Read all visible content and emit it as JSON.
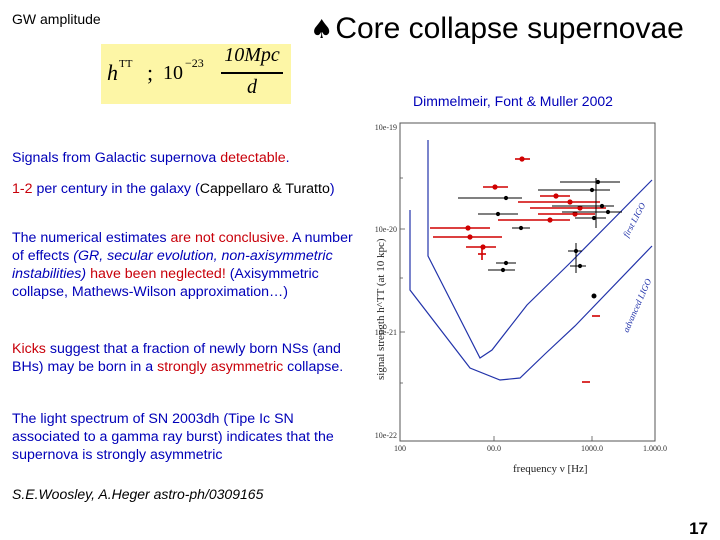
{
  "gw_label": "GW amplitude",
  "title": {
    "symbol": "♠",
    "text": "Core collapse supernovae"
  },
  "formula": {
    "lhs": "h",
    "lhs_sup": "TT",
    "rel": ";",
    "base": "10",
    "exp": "−23",
    "num": "10Mpc",
    "den": "d"
  },
  "authors": "Dimmelmeir, Font & Muller 2002",
  "p1": {
    "a": "Signals from Galactic supernova ",
    "b": "detectable",
    "c": "."
  },
  "p2": {
    "a": "1-2",
    "b": " per century in the galaxy (",
    "c": "Cappellaro & Turatto",
    "d": ")"
  },
  "p3": {
    "a": "The numerical estimates ",
    "b": "are not conclusive.",
    "c": " A number of effects ",
    "d": "(GR, secular evolution, non-axisymmetric instabilities)",
    "e": " ",
    "f": "have been neglected!",
    "g": " (Axisymmetric collapse, Mathews-Wilson approximation…)"
  },
  "p4": {
    "a": "Kicks",
    "b": " suggest that a fraction of newly born NSs (and BHs) may be born in a ",
    "c": "strongly asymmetric",
    "d": " collapse."
  },
  "p5": {
    "text": "The light spectrum of SN 2003dh (Tipe Ic SN associated to a gamma ray burst) indicates that the supernova is strongly asymmetric"
  },
  "reference": "S.E.Woosley, A.Heger astro-ph/0309165",
  "page_number": "17",
  "plot": {
    "ylabel": "signal strength h^TT (at 10 kpc)",
    "xlabel": "frequency ν [Hz]",
    "yticks": [
      "10e-19",
      "10e-20",
      "10e-21",
      "10e-22"
    ],
    "xticks": [
      "100",
      "00.0",
      "1000.0",
      "1.000.0"
    ],
    "curve1": "first LIGO",
    "curve2": "advanced LIGO",
    "colors": {
      "red": "#d00000",
      "black": "#000000",
      "blue": "#2233aa"
    }
  }
}
